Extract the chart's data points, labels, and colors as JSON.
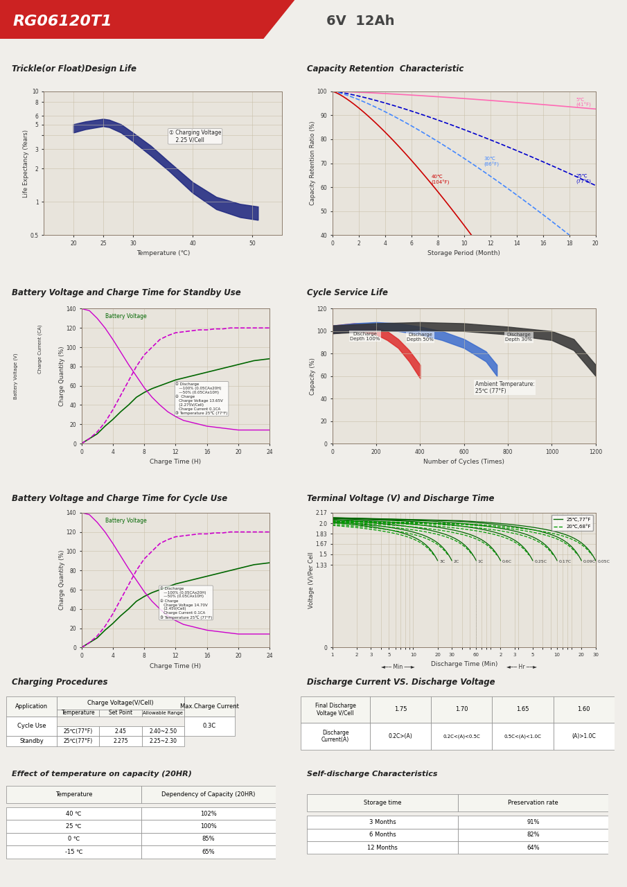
{
  "title_model": "RG06120T1",
  "title_spec": "6V  12Ah",
  "header_red": "#cc2222",
  "bg_color": "#f0eeea",
  "chart_bg": "#e8e4dc",
  "grid_color": "#c8c0b0",
  "sections": {
    "trickle_title": "Trickle(or Float)Design Life",
    "capacity_title": "Capacity Retention  Characteristic",
    "bv_standby_title": "Battery Voltage and Charge Time for Standby Use",
    "cycle_service_title": "Cycle Service Life",
    "bv_cycle_title": "Battery Voltage and Charge Time for Cycle Use",
    "terminal_title": "Terminal Voltage (V) and Discharge Time",
    "charging_proc_title": "Charging Procedures",
    "discharge_vs_title": "Discharge Current VS. Discharge Voltage",
    "effect_temp_title": "Effect of temperature on capacity (20HR)",
    "self_discharge_title": "Self-discharge Characteristics"
  },
  "charging_proc_table": {
    "headers": [
      "Application",
      "Charge Voltage(V/Cell)",
      "",
      "",
      "Max.Charge Current"
    ],
    "sub_headers": [
      "",
      "Temperature",
      "Set Point",
      "Allowable Range",
      ""
    ],
    "rows": [
      [
        "Cycle Use",
        "25℃(77°F)",
        "2.45",
        "2.40~2.50",
        "0.3C"
      ],
      [
        "Standby",
        "25℃(77°F)",
        "2.275",
        "2.25~2.30",
        ""
      ]
    ]
  },
  "discharge_vs_table": {
    "row1": [
      "Final Discharge\nVoltage V/Cell",
      "1.75",
      "1.70",
      "1.65",
      "1.60"
    ],
    "row2": [
      "Discharge\nCurrent(A)",
      "0.2C>(A)",
      "0.2C<(A)<0.5C",
      "0.5C<(A)<1.0C",
      "(A)>1.0C"
    ]
  },
  "effect_temp_table": {
    "headers": [
      "Temperature",
      "Dependency of Capacity (20HR)"
    ],
    "rows": [
      [
        "40 ℃",
        "102%"
      ],
      [
        "25 ℃",
        "100%"
      ],
      [
        "0 ℃",
        "85%"
      ],
      [
        "-15 ℃",
        "65%"
      ]
    ]
  },
  "self_discharge_table": {
    "headers": [
      "Storage time",
      "Preservation rate"
    ],
    "rows": [
      [
        "3 Months",
        "91%"
      ],
      [
        "6 Months",
        "82%"
      ],
      [
        "12 Months",
        "64%"
      ]
    ]
  }
}
